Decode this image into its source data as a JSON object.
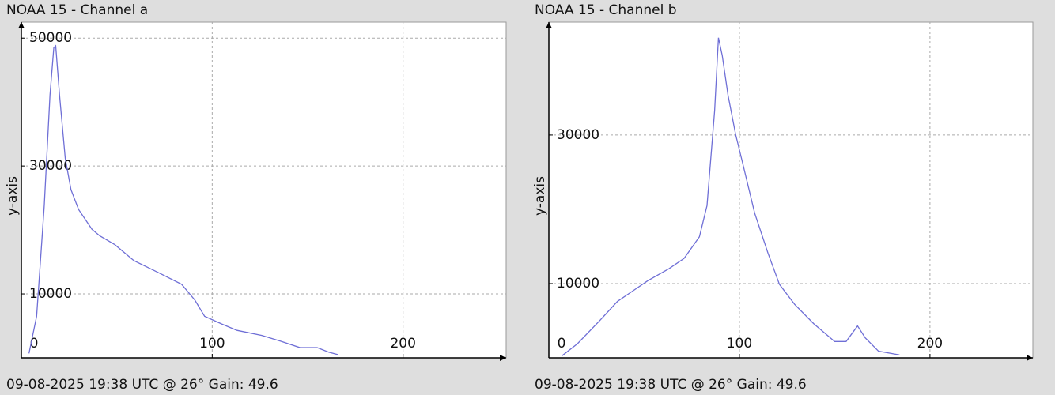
{
  "chart_data": [
    {
      "type": "line",
      "title": "NOAA 15 - Channel a",
      "y_label": "y-axis",
      "caption": "09-08-2025 19:38 UTC @ 26° Gain: 49.6",
      "color": "#6f6fd6",
      "grid": true,
      "x": [
        4,
        8,
        12,
        15,
        17,
        18,
        20,
        23,
        26,
        30,
        37,
        41,
        49,
        59,
        72,
        84,
        91,
        96,
        105,
        113,
        126,
        136,
        146,
        155,
        161,
        166
      ],
      "values": [
        700,
        6500,
        23800,
        41100,
        48500,
        48800,
        41100,
        31200,
        26300,
        23200,
        20100,
        19100,
        17700,
        15200,
        13300,
        11500,
        9000,
        6500,
        5300,
        4300,
        3500,
        2600,
        1600,
        1600,
        900,
        500
      ],
      "xlim": [
        0,
        254
      ],
      "ylim": [
        0,
        52500
      ],
      "xticks": [
        0,
        100,
        200
      ],
      "yticks": [
        10000,
        30000,
        50000
      ]
    },
    {
      "type": "line",
      "title": "NOAA 15 - Channel b",
      "y_label": "y-axis",
      "caption": "09-08-2025 19:38 UTC @ 26° Gain: 49.6",
      "color": "#6f6fd6",
      "grid": true,
      "x": [
        7,
        15,
        27,
        36,
        44,
        52,
        63,
        71,
        79,
        83,
        87,
        89,
        91,
        94,
        98,
        102,
        108,
        115,
        121,
        129,
        139,
        150,
        156,
        162,
        166,
        173,
        184
      ],
      "values": [
        300,
        1900,
        5100,
        7600,
        9000,
        10400,
        12000,
        13400,
        16300,
        20500,
        33300,
        43100,
        40700,
        35400,
        30100,
        25900,
        19500,
        14100,
        9900,
        7200,
        4600,
        2200,
        2200,
        4300,
        2700,
        900,
        400
      ],
      "xlim": [
        0,
        254
      ],
      "ylim": [
        0,
        45200
      ],
      "xticks": [
        0,
        100,
        200
      ],
      "yticks": [
        10000,
        30000
      ]
    }
  ]
}
